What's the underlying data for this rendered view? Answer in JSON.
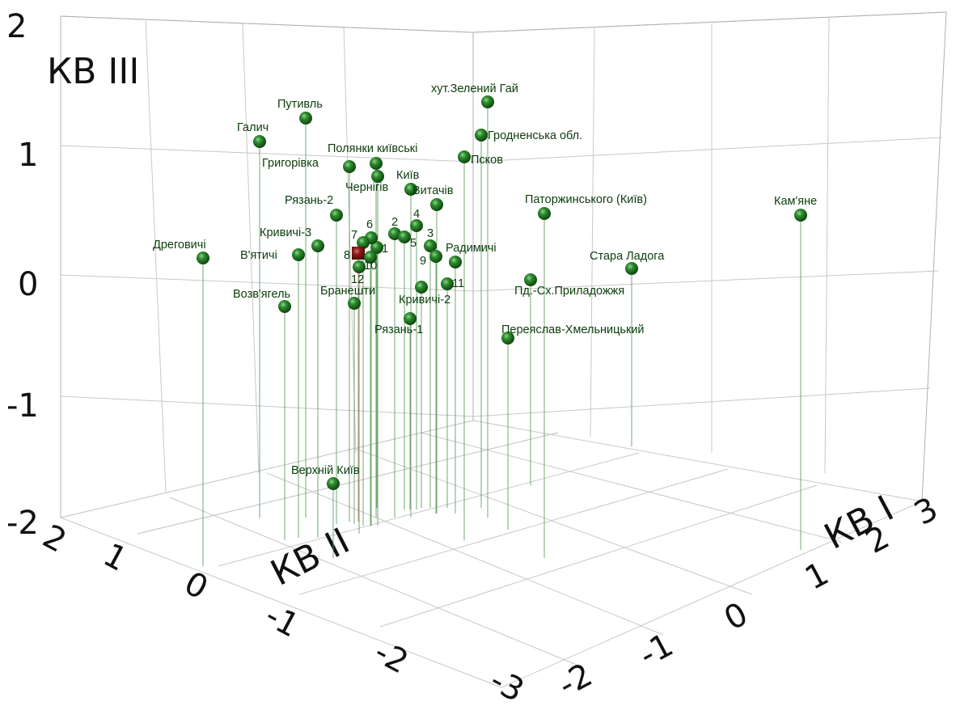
{
  "chart_data": {
    "type": "scatter",
    "title": "КВ III",
    "axes": {
      "z_label": "КВ III",
      "x_label": "КВ I",
      "y_label": "КВ II",
      "z_ticks": [
        "2",
        "1",
        "0",
        "-1",
        "-2"
      ],
      "x_ticks": [
        "-2",
        "-1",
        "0",
        "1",
        "2",
        "3"
      ],
      "y_ticks": [
        "2",
        "1",
        "0",
        "-1",
        "-2",
        "-3"
      ]
    },
    "colors": {
      "point": "#1f7a1f",
      "highlight": "#8b1a1a",
      "stem": "#5a9a5a"
    },
    "points": [
      {
        "label": "хут.Зелений Гай",
        "kind": "green"
      },
      {
        "label": "Гродненська обл.",
        "kind": "green"
      },
      {
        "label": "Псков",
        "kind": "green"
      },
      {
        "label": "Путивль",
        "kind": "green"
      },
      {
        "label": "Галич",
        "kind": "green"
      },
      {
        "label": "Полянки київські",
        "kind": "green"
      },
      {
        "label": "Григорівка",
        "kind": "green"
      },
      {
        "label": "Чернігів",
        "kind": "green"
      },
      {
        "label": "Київ",
        "kind": "green"
      },
      {
        "label": "Витачів",
        "kind": "green"
      },
      {
        "label": "Рязань-2",
        "kind": "green"
      },
      {
        "label": "Паторжинського (Київ)",
        "kind": "green"
      },
      {
        "label": "Кам'яне",
        "kind": "green"
      },
      {
        "label": "Кривичі-3",
        "kind": "green"
      },
      {
        "label": "Дреговичі",
        "kind": "green"
      },
      {
        "label": "В'ятичі",
        "kind": "green"
      },
      {
        "label": "Радимичі",
        "kind": "green"
      },
      {
        "label": "Стара Ладога",
        "kind": "green"
      },
      {
        "label": "Пд.-Сх.Приладожжя",
        "kind": "green"
      },
      {
        "label": "Возв'ягель",
        "kind": "green"
      },
      {
        "label": "Бранешти",
        "kind": "green"
      },
      {
        "label": "Кривичі-2",
        "kind": "green"
      },
      {
        "label": "Рязань-1",
        "kind": "green"
      },
      {
        "label": "Переяслав-Хмельницький",
        "kind": "green"
      },
      {
        "label": "Верхній Київ",
        "kind": "green"
      },
      {
        "label": "1",
        "kind": "green"
      },
      {
        "label": "2",
        "kind": "green"
      },
      {
        "label": "3",
        "kind": "green"
      },
      {
        "label": "4",
        "kind": "green"
      },
      {
        "label": "5",
        "kind": "green"
      },
      {
        "label": "6",
        "kind": "green"
      },
      {
        "label": "7",
        "kind": "green"
      },
      {
        "label": "8",
        "kind": "red"
      },
      {
        "label": "9",
        "kind": "green"
      },
      {
        "label": "10",
        "kind": "green"
      },
      {
        "label": "11",
        "kind": "green"
      },
      {
        "label": "12",
        "kind": "green"
      }
    ]
  }
}
